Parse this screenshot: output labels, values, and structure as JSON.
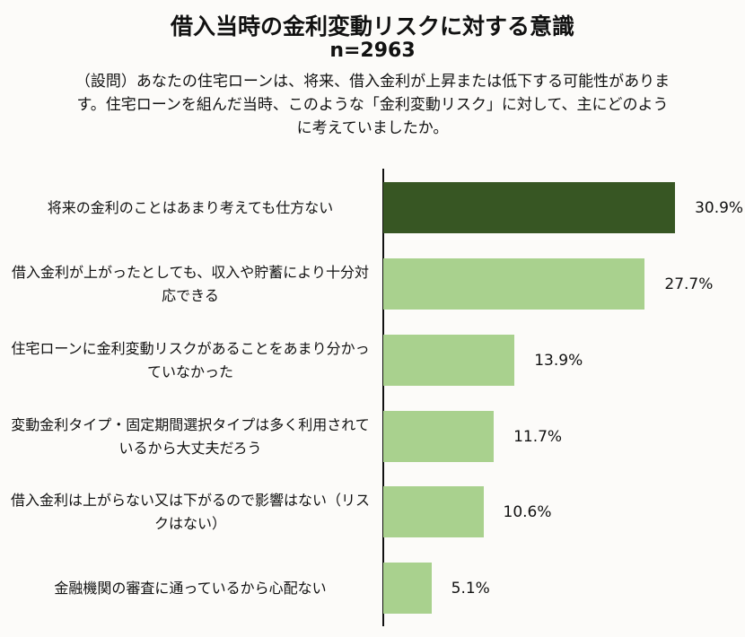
{
  "header": {
    "title": "借入当時の金利変動リスクに対する意識",
    "sample": "n=2963",
    "question": "（設問）あなたの住宅ローンは、将来、借入金利が上昇または低下する可能性があります。住宅ローンを組んだ当時、このような「金利変動リスク」に対して、主にどのように考えていましたか。"
  },
  "colors": {
    "highlight": "#375623",
    "default": "#a9d18e"
  },
  "chart_data": {
    "type": "bar",
    "orientation": "horizontal",
    "title": "借入当時の金利変動リスクに対する意識",
    "subtitle": "n=2963",
    "xlabel": "",
    "ylabel": "",
    "grid": false,
    "legend": null,
    "categories": [
      "将来の金利のことはあまり考えても仕方ない",
      "借入金利が上がったとしても、収入や貯蓄により十分対応できる",
      "住宅ローンに金利変動リスクがあることをあまり分かっていなかった",
      "変動金利タイプ・固定期間選択タイプは多く利用されているから大丈夫だろう",
      "借入金利は上がらない又は下がるので影響はない（リスクはない）",
      "金融機関の審査に通っているから心配ない"
    ],
    "values": [
      30.9,
      27.7,
      13.9,
      11.7,
      10.6,
      5.1
    ],
    "value_labels": [
      "30.9%",
      "27.7%",
      "13.9%",
      "11.7%",
      "10.6%",
      "5.1%"
    ],
    "unit": "%"
  },
  "rows": [
    {
      "label": "将来の金利のことはあまり考えても仕方ない",
      "value": "30.9%"
    },
    {
      "label": "借入金利が上がったとしても、収入や貯蓄により十分対応できる",
      "value": "27.7%"
    },
    {
      "label": "住宅ローンに金利変動リスクがあることをあまり分かっていなかった",
      "value": "13.9%"
    },
    {
      "label": "変動金利タイプ・固定期間選択タイプは多く利用されているから大丈夫だろう",
      "value": "11.7%"
    },
    {
      "label": "借入金利は上がらない又は下がるので影響はない（リスクはない）",
      "value": "10.6%"
    },
    {
      "label": "金融機関の審査に通っているから心配ない",
      "value": "5.1%"
    }
  ]
}
